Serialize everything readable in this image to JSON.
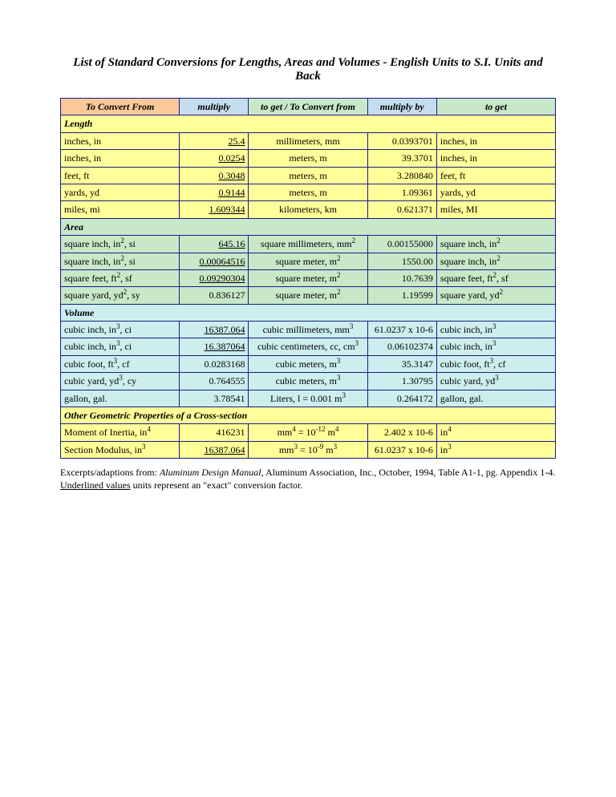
{
  "title": "List of Standard Conversions for Lengths, Areas and Volumes - English Units to S.I. Units and Back",
  "headers": {
    "from": "To Convert From",
    "mult": "multiply",
    "to": "to get / To Convert from",
    "multby": "multiply by",
    "get": "to get"
  },
  "sections": {
    "length": "Length",
    "area": "Area",
    "volume": "Volume",
    "other": "Other Geometric Properties of a Cross-section"
  },
  "length": [
    {
      "from": "inches, in",
      "mult": "25.4",
      "mult_u": true,
      "to": "millimeters, mm",
      "multby": "0.0393701",
      "get": "inches, in"
    },
    {
      "from": "inches, in",
      "mult": "0.0254",
      "mult_u": true,
      "to": "meters, m",
      "multby": "39.3701",
      "get": "inches, in"
    },
    {
      "from": "feet, ft",
      "mult": "0.3048",
      "mult_u": true,
      "to": "meters, m",
      "multby": "3.280840",
      "get": "feet, ft"
    },
    {
      "from": "yards, yd",
      "mult": "0.9144",
      "mult_u": true,
      "to": "meters, m",
      "multby": "1.09361",
      "get": "yards, yd"
    },
    {
      "from": "miles, mi",
      "mult": "1.609344",
      "mult_u": true,
      "to": "kilometers, km",
      "multby": "0.621371",
      "get": "miles, MI"
    }
  ],
  "area": [
    {
      "from_html": "square inch, in<sup>2</sup>, si",
      "mult": "645.16",
      "mult_u": true,
      "to_html": "square millimeters, mm<sup>2</sup>",
      "multby": "0.00155000",
      "get_html": "square inch, in<sup>2</sup>"
    },
    {
      "from_html": "square inch, in<sup>2</sup>, si",
      "mult": "0.00064516",
      "mult_u": true,
      "to_html": "square meter, m<sup>2</sup>",
      "multby": "1550.00",
      "get_html": "square inch, in<sup>2</sup>"
    },
    {
      "from_html": "square feet, ft<sup>2</sup>, sf",
      "mult": "0.09290304",
      "mult_u": true,
      "to_html": "square meter, m<sup>2</sup>",
      "multby": "10.7639",
      "get_html": "square feet, ft<sup>2</sup>, sf"
    },
    {
      "from_html": "square yard, yd<sup>2</sup>, sy",
      "mult": "0.836127",
      "mult_u": false,
      "to_html": "square meter, m<sup>2</sup>",
      "multby": "1.19599",
      "get_html": "square yard, yd<sup>2</sup>"
    }
  ],
  "volume": [
    {
      "from_html": "cubic inch, in<sup>3</sup>, ci",
      "mult": "16387.064",
      "mult_u": true,
      "to_html": "cubic millimeters, mm<sup>3</sup>",
      "multby_html": "61.0237 x 10-6",
      "get_html": "cubic inch, in<sup>3</sup>"
    },
    {
      "from_html": "cubic inch, in<sup>3</sup>, ci",
      "mult": "16.387064",
      "mult_u": true,
      "to_html": "cubic centimeters, cc, cm<sup>3</sup>",
      "multby": "0.06102374",
      "get_html": "cubic inch, in<sup>3</sup>"
    },
    {
      "from_html": "cubic foot, ft<sup>3</sup>, cf",
      "mult": "0.0283168",
      "mult_u": false,
      "to_html": "cubic meters, m<sup>3</sup>",
      "multby": "35.3147",
      "get_html": "cubic foot, ft<sup>3</sup>, cf"
    },
    {
      "from_html": "cubic yard, yd<sup>3</sup>, cy",
      "mult": "0.764555",
      "mult_u": false,
      "to_html": "cubic meters, m<sup>3</sup>",
      "multby": "1.30795",
      "get_html": "cubic yard, yd<sup>3</sup>"
    },
    {
      "from_html": "gallon, gal.",
      "mult": "3.78541",
      "mult_u": false,
      "to_html": "Liters, l = 0.001 m<sup>3</sup>",
      "multby": "0.264172",
      "get_html": "gallon, gal."
    }
  ],
  "other": [
    {
      "from_html": "Moment of Inertia, in<sup>4</sup>",
      "mult": "416231",
      "mult_u": false,
      "to_html": "mm<sup>4</sup> = 10<sup>-12</sup> m<sup>4</sup>",
      "multby": "2.402 x 10-6",
      "get_html": "in<sup>4</sup>"
    },
    {
      "from_html": "Section Modulus, in<sup>3</sup>",
      "mult": "16387.064",
      "mult_u": true,
      "to_html": "mm<sup>3</sup> = 10<sup>-9</sup> m<sup>3</sup>",
      "multby_html": "61.0237 x 10-6",
      "get_html": "in<sup>3</sup>"
    }
  ],
  "footnote": {
    "pre": "Excerpts/adaptions from: ",
    "cite": "Aluminum Design Manual",
    "post1": ", Aluminum Association, Inc., October, 1994, Table A1-1, pg. Appendix 1-4. ",
    "u": "Underlined values",
    "post2": " units represent an \"exact\" conversion factor."
  },
  "colors": {
    "border": "#1a1a8a",
    "orange": "#fbc999",
    "blueHeader": "#c6ddee",
    "greenHeader": "#c8e8c8",
    "yellow": "#ffff99",
    "green": "#c8e8c8",
    "cyan": "#cceeee"
  }
}
